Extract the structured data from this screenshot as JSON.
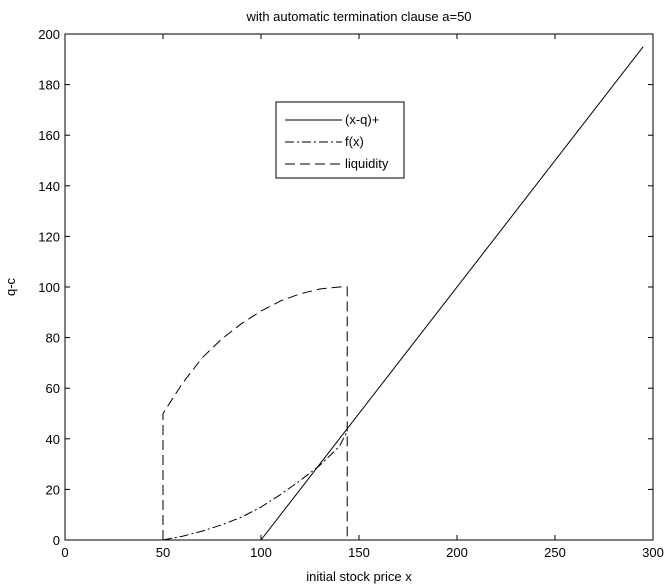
{
  "chart_data": {
    "type": "line",
    "title": "with automatic termination clause a=50",
    "xlabel": "initial stock price x",
    "ylabel": "q-c",
    "xlim": [
      0,
      300
    ],
    "ylim": [
      0,
      200
    ],
    "xticks": [
      0,
      50,
      100,
      150,
      200,
      250,
      300
    ],
    "yticks": [
      0,
      20,
      40,
      60,
      80,
      100,
      120,
      140,
      160,
      180,
      200
    ],
    "grid": false,
    "legend_position": "top-center",
    "series": [
      {
        "name": "(x-q)+",
        "style": "solid",
        "x": [
          100,
          295
        ],
        "y": [
          0,
          195
        ]
      },
      {
        "name": "f(x)",
        "style": "dashdot",
        "x": [
          50,
          60,
          70,
          80,
          90,
          100,
          110,
          120,
          130,
          140,
          144
        ],
        "y": [
          0,
          1.5,
          3.5,
          6,
          9,
          13,
          18,
          23.5,
          29.5,
          37,
          43
        ]
      },
      {
        "name": "liquidity",
        "style": "dashed",
        "x": [
          50,
          50,
          60,
          70,
          80,
          90,
          100,
          110,
          120,
          130,
          140,
          144,
          144
        ],
        "y": [
          0,
          50,
          62,
          72,
          79.5,
          85.5,
          90.5,
          94.5,
          97.3,
          99.2,
          100,
          100,
          0
        ]
      }
    ]
  }
}
